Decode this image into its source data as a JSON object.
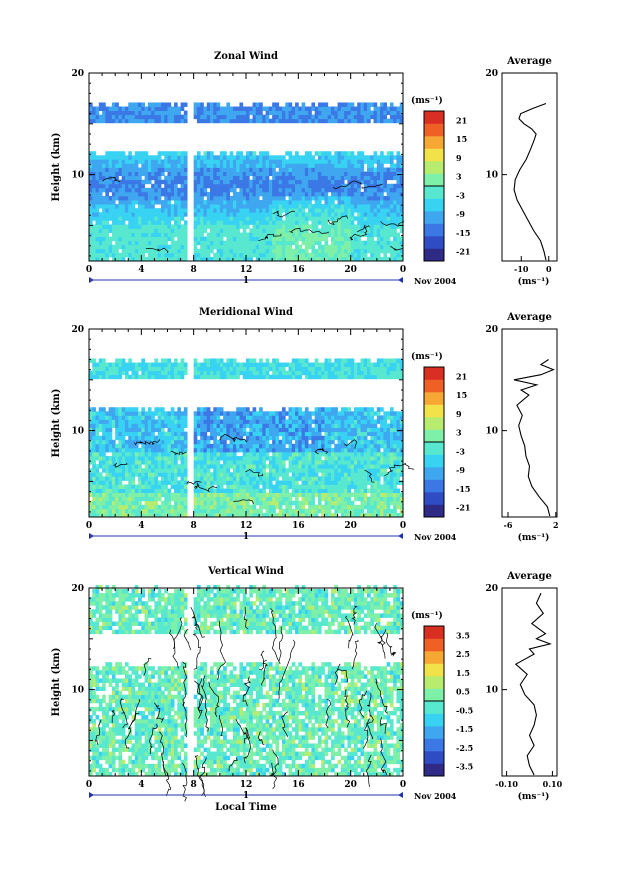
{
  "chart_data": [
    {
      "type": "heatmap",
      "title": "Zonal Wind",
      "ylabel": "Height (km)",
      "xlabel": "",
      "date_label": "Nov 2004",
      "x_ticks": [
        "0",
        "4",
        "8",
        "12",
        "16",
        "20",
        "0"
      ],
      "day_marker": "1",
      "y_ticks": [
        "20",
        "10"
      ],
      "xlim": [
        0,
        24
      ],
      "ylim": [
        1.5,
        20
      ],
      "colorbar": {
        "unit": "(ms⁻¹)",
        "min": -24,
        "max": 24,
        "ticks": [
          "21",
          "15",
          "9",
          "3",
          "-3",
          "-9",
          "-15",
          "-21"
        ]
      },
      "data_gap_hours": [
        7.4,
        7.9
      ],
      "valid_height_ranges_km": [
        [
          1.5,
          12.2
        ],
        [
          15.2,
          17
        ]
      ],
      "average": {
        "title": "Average",
        "unit": "(ms⁻¹)",
        "x_ticks": [
          "-10",
          "0"
        ],
        "xlim": [
          -17,
          3
        ],
        "profile": [
          {
            "h": 1.6,
            "v": -1.0
          },
          {
            "h": 2.5,
            "v": -1.8
          },
          {
            "h": 3.5,
            "v": -3.0
          },
          {
            "h": 4.5,
            "v": -5.5
          },
          {
            "h": 5.5,
            "v": -7.5
          },
          {
            "h": 6.5,
            "v": -9.5
          },
          {
            "h": 7.5,
            "v": -11.5
          },
          {
            "h": 8.5,
            "v": -12.6
          },
          {
            "h": 9.5,
            "v": -12.2
          },
          {
            "h": 10.5,
            "v": -10.5
          },
          {
            "h": 11.5,
            "v": -8.2
          },
          {
            "h": 12.5,
            "v": -6.6
          },
          {
            "h": 13.5,
            "v": -5.2
          },
          {
            "h": 14.0,
            "v": -4.6
          },
          {
            "h": 14.5,
            "v": -6.2
          },
          {
            "h": 15.0,
            "v": -9.0
          },
          {
            "h": 15.5,
            "v": -10.8
          },
          {
            "h": 16.0,
            "v": -10.2
          },
          {
            "h": 16.5,
            "v": -6.0
          },
          {
            "h": 17.0,
            "v": -1.0
          }
        ]
      }
    },
    {
      "type": "heatmap",
      "title": "Meridional Wind",
      "ylabel": "Height (km)",
      "xlabel": "",
      "date_label": "Nov 2004",
      "x_ticks": [
        "0",
        "4",
        "8",
        "12",
        "16",
        "20",
        "0"
      ],
      "day_marker": "1",
      "y_ticks": [
        "20",
        "10"
      ],
      "xlim": [
        0,
        24
      ],
      "ylim": [
        1.5,
        20
      ],
      "colorbar": {
        "unit": "(ms⁻¹)",
        "min": -24,
        "max": 24,
        "ticks": [
          "21",
          "15",
          "9",
          "3",
          "-3",
          "-9",
          "-15",
          "-21"
        ]
      },
      "data_gap_hours": [
        7.4,
        7.9
      ],
      "valid_height_ranges_km": [
        [
          1.5,
          12.2
        ],
        [
          15.2,
          17
        ]
      ],
      "average": {
        "title": "Average",
        "unit": "(ms⁻¹)",
        "x_ticks": [
          "-6",
          "2"
        ],
        "xlim": [
          -7,
          2.2
        ],
        "profile": [
          {
            "h": 1.6,
            "v": 1.0
          },
          {
            "h": 2.5,
            "v": 0.6
          },
          {
            "h": 3.5,
            "v": -0.8
          },
          {
            "h": 4.5,
            "v": -2.0
          },
          {
            "h": 5.5,
            "v": -2.6
          },
          {
            "h": 6.5,
            "v": -2.4
          },
          {
            "h": 7.5,
            "v": -3.0
          },
          {
            "h": 8.5,
            "v": -3.2
          },
          {
            "h": 9.5,
            "v": -3.8
          },
          {
            "h": 10.5,
            "v": -4.2
          },
          {
            "h": 11.5,
            "v": -3.6
          },
          {
            "h": 12.5,
            "v": -4.5
          },
          {
            "h": 13.5,
            "v": -2.5
          },
          {
            "h": 14.0,
            "v": -3.8
          },
          {
            "h": 14.5,
            "v": -1.2
          },
          {
            "h": 15.0,
            "v": -5.0
          },
          {
            "h": 15.5,
            "v": -0.5
          },
          {
            "h": 16.0,
            "v": 1.6
          },
          {
            "h": 16.5,
            "v": -0.5
          },
          {
            "h": 17.0,
            "v": 0.8
          }
        ]
      }
    },
    {
      "type": "heatmap",
      "title": "Vertical Wind",
      "ylabel": "Height (km)",
      "xlabel": "Local Time",
      "date_label": "Nov 2004",
      "x_ticks": [
        "0",
        "4",
        "8",
        "12",
        "16",
        "20",
        "0"
      ],
      "day_marker": "1",
      "y_ticks": [
        "20",
        "10"
      ],
      "xlim": [
        0,
        24
      ],
      "ylim": [
        1.5,
        20
      ],
      "colorbar": {
        "unit": "(ms⁻¹)",
        "min": -4,
        "max": 4,
        "ticks": [
          "3.5",
          "2.5",
          "1.5",
          "0.5",
          "-0.5",
          "-1.5",
          "-2.5",
          "-3.5"
        ]
      },
      "data_gap_hours": [
        7.4,
        7.9
      ],
      "valid_height_ranges_km": [
        [
          1.5,
          12.5
        ],
        [
          15.5,
          20
        ]
      ],
      "average": {
        "title": "Average",
        "unit": "(ms⁻¹)",
        "x_ticks": [
          "-0.10",
          "0.10"
        ],
        "xlim": [
          -0.12,
          0.12
        ],
        "profile": [
          {
            "h": 1.6,
            "v": 0.02
          },
          {
            "h": 2.5,
            "v": 0.0
          },
          {
            "h": 3.5,
            "v": -0.01
          },
          {
            "h": 4.5,
            "v": 0.02
          },
          {
            "h": 5.5,
            "v": 0.0
          },
          {
            "h": 6.5,
            "v": 0.02
          },
          {
            "h": 7.5,
            "v": 0.03
          },
          {
            "h": 8.5,
            "v": 0.02
          },
          {
            "h": 9.5,
            "v": -0.02
          },
          {
            "h": 10.5,
            "v": -0.04
          },
          {
            "h": 11.5,
            "v": -0.01
          },
          {
            "h": 12.5,
            "v": -0.06
          },
          {
            "h": 13.5,
            "v": 0.02
          },
          {
            "h": 14.0,
            "v": 0.0
          },
          {
            "h": 14.5,
            "v": 0.09
          },
          {
            "h": 15.0,
            "v": 0.03
          },
          {
            "h": 15.5,
            "v": 0.07
          },
          {
            "h": 16.5,
            "v": 0.01
          },
          {
            "h": 17.5,
            "v": 0.06
          },
          {
            "h": 18.5,
            "v": 0.03
          },
          {
            "h": 19.5,
            "v": 0.05
          }
        ]
      }
    }
  ]
}
